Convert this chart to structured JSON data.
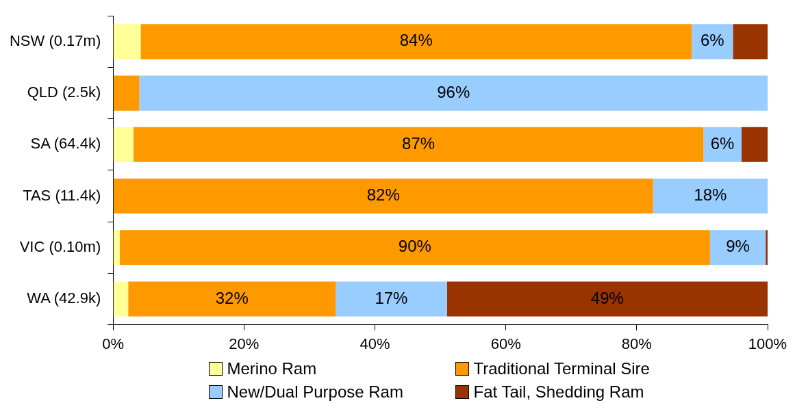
{
  "chart_data": {
    "type": "bar",
    "orientation": "horizontal",
    "stacked": true,
    "categories": [
      "NSW (0.17m)",
      "QLD (2.5k)",
      "SA (64.4k)",
      "TAS (11.4k)",
      "VIC (0.10m)",
      "WA (42.9k)"
    ],
    "series": [
      {
        "name": "Merino Ram",
        "color": "#ffff99",
        "values": [
          4.2,
          0,
          3.1,
          0,
          1,
          2.3
        ],
        "value_labels": [
          null,
          null,
          null,
          null,
          null,
          null
        ]
      },
      {
        "name": "Traditional Terminal Sire",
        "color": "#ff9900",
        "values": [
          84.2,
          4,
          87.1,
          82.5,
          90.2,
          31.7
        ],
        "value_labels": [
          "84%",
          null,
          "87%",
          "82%",
          "90%",
          "32%"
        ]
      },
      {
        "name": "New/Dual Purpose Ram",
        "color": "#99ccff",
        "values": [
          6.3,
          96,
          5.8,
          17.5,
          8.5,
          17
        ],
        "value_labels": [
          "6%",
          "96%",
          "6%",
          "18%",
          "9%",
          "17%"
        ]
      },
      {
        "name": "Fat Tail, Shedding Ram",
        "color": "#993300",
        "values": [
          5.3,
          0,
          4,
          0,
          0.3,
          49
        ],
        "value_labels": [
          null,
          null,
          null,
          null,
          null,
          "49%"
        ]
      }
    ],
    "xlim": [
      0,
      100
    ],
    "xticks": [
      {
        "value": 0,
        "label": "0%"
      },
      {
        "value": 20,
        "label": "20%"
      },
      {
        "value": 40,
        "label": "40%"
      },
      {
        "value": 60,
        "label": "60%"
      },
      {
        "value": 80,
        "label": "80%"
      },
      {
        "value": 100,
        "label": "100%"
      }
    ],
    "grid": false,
    "legend": "bottom"
  }
}
